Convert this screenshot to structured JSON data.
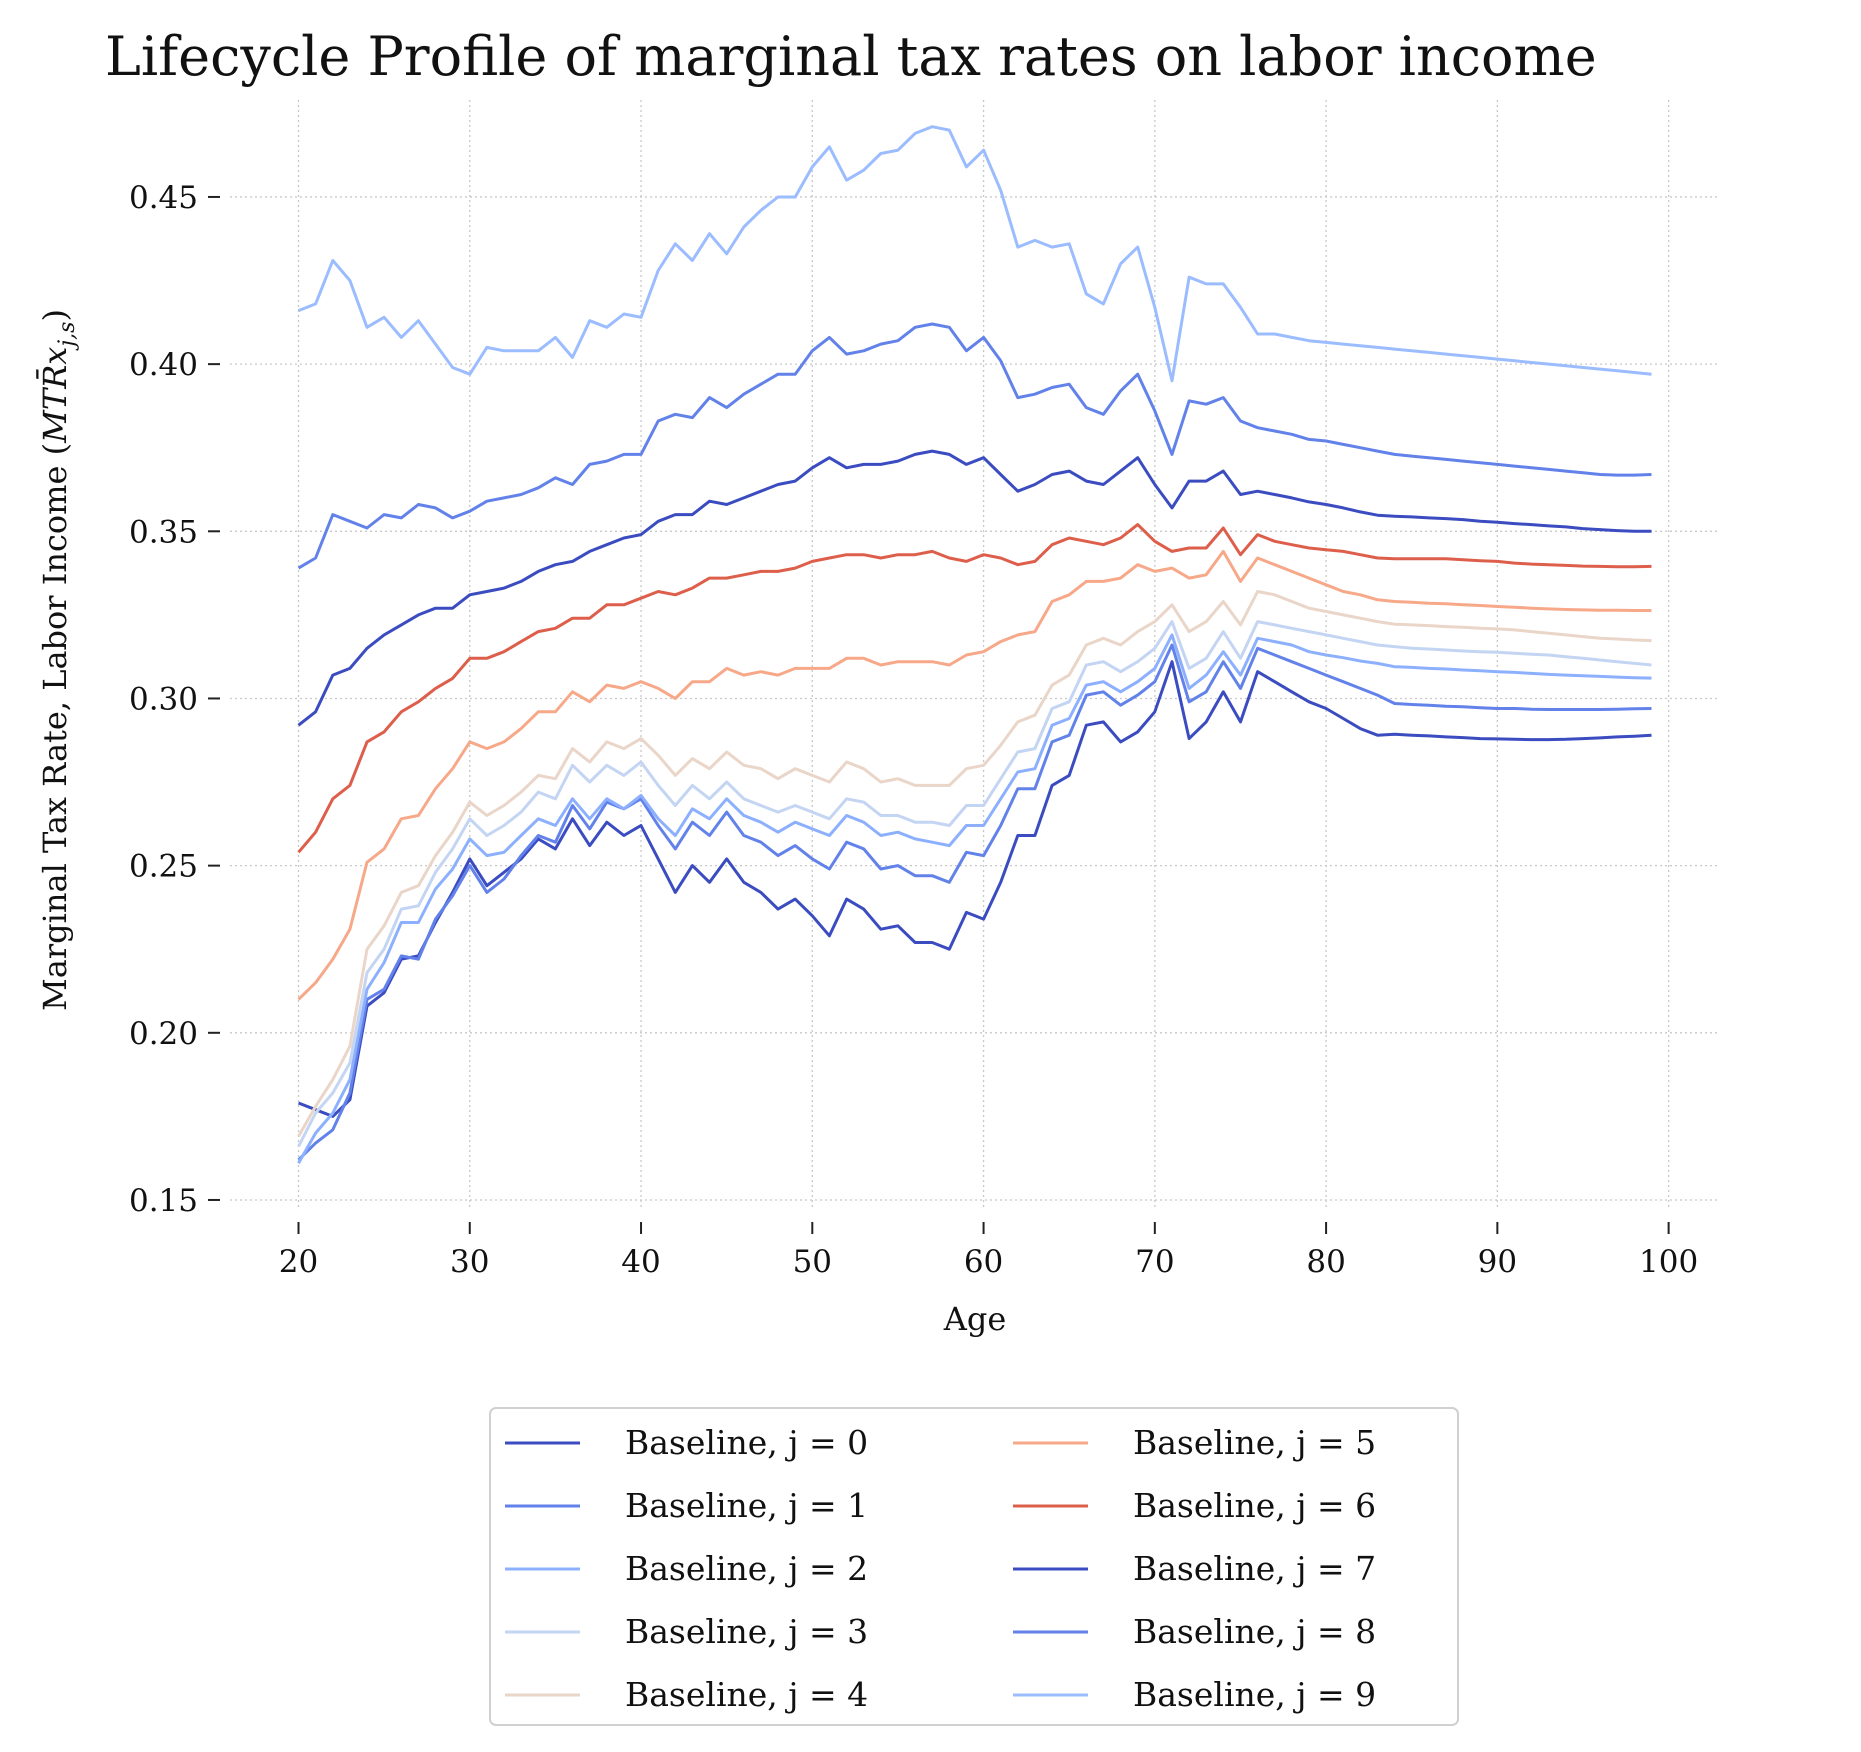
{
  "chart_data": {
    "type": "line",
    "title": "Lifecycle Profile of marginal tax rates on labor income",
    "xlabel": "Age",
    "ylabel_prefix": "Marginal Tax Rate, Labor Income (",
    "ylabel_math": "MTR̄x",
    "ylabel_sub": "j,s",
    "ylabel_suffix": ")",
    "xlim": [
      16,
      103
    ],
    "ylim": [
      0.147,
      0.479
    ],
    "xticks": [
      "20",
      "30",
      "40",
      "50",
      "60",
      "70",
      "80",
      "90",
      "100"
    ],
    "xtick_values": [
      20,
      30,
      40,
      50,
      60,
      70,
      80,
      90,
      100
    ],
    "yticks": [
      "0.15",
      "0.20",
      "0.25",
      "0.30",
      "0.35",
      "0.40",
      "0.45"
    ],
    "ytick_values": [
      0.15,
      0.2,
      0.25,
      0.3,
      0.35,
      0.4,
      0.45
    ],
    "grid": true,
    "legend_position": "below",
    "legend_columns": 2,
    "x": [
      20,
      21,
      22,
      23,
      24,
      25,
      26,
      27,
      28,
      29,
      30,
      31,
      32,
      33,
      34,
      35,
      36,
      37,
      38,
      39,
      40,
      41,
      42,
      43,
      44,
      45,
      46,
      47,
      48,
      49,
      50,
      51,
      52,
      53,
      54,
      55,
      56,
      57,
      58,
      59,
      60,
      61,
      62,
      63,
      64,
      65,
      66,
      67,
      68,
      69,
      70,
      71,
      72,
      73,
      74,
      75,
      76,
      77,
      78,
      79,
      80,
      81,
      82,
      83,
      84,
      85,
      86,
      87,
      88,
      89,
      90,
      91,
      92,
      93,
      94,
      95,
      96,
      97,
      98,
      99
    ],
    "series": [
      {
        "name": "Baseline, j = 0",
        "color": "#3b4cc0",
        "values": [
          0.179,
          0.177,
          0.175,
          0.18,
          0.208,
          0.212,
          0.222,
          0.223,
          0.233,
          0.242,
          0.252,
          0.244,
          0.248,
          0.252,
          0.258,
          0.255,
          0.264,
          0.256,
          0.263,
          0.259,
          0.262,
          0.252,
          0.242,
          0.25,
          0.245,
          0.252,
          0.245,
          0.242,
          0.237,
          0.24,
          0.235,
          0.229,
          0.24,
          0.237,
          0.231,
          0.232,
          0.227,
          0.227,
          0.225,
          0.236,
          0.234,
          0.245,
          0.259,
          0.259,
          0.274,
          0.277,
          0.292,
          0.293,
          0.287,
          0.29,
          0.296,
          0.311,
          0.288,
          0.293,
          0.302,
          0.293,
          0.308,
          0.305,
          0.302,
          0.299,
          0.297,
          0.294,
          0.291,
          0.289,
          0.2893,
          0.289,
          0.2888,
          0.2885,
          0.2883,
          0.288,
          0.2879,
          0.2878,
          0.2877,
          0.2877,
          0.2878,
          0.288,
          0.2882,
          0.2885,
          0.2887,
          0.289
        ]
      },
      {
        "name": "Baseline, j = 1",
        "color": "#6282ea",
        "values": [
          0.162,
          0.167,
          0.171,
          0.182,
          0.21,
          0.213,
          0.223,
          0.222,
          0.234,
          0.241,
          0.25,
          0.242,
          0.246,
          0.253,
          0.259,
          0.257,
          0.268,
          0.261,
          0.269,
          0.267,
          0.27,
          0.262,
          0.255,
          0.263,
          0.259,
          0.266,
          0.259,
          0.257,
          0.253,
          0.256,
          0.252,
          0.249,
          0.257,
          0.255,
          0.249,
          0.25,
          0.247,
          0.247,
          0.245,
          0.254,
          0.253,
          0.262,
          0.273,
          0.273,
          0.287,
          0.289,
          0.301,
          0.302,
          0.298,
          0.301,
          0.305,
          0.316,
          0.299,
          0.302,
          0.311,
          0.303,
          0.315,
          0.313,
          0.311,
          0.309,
          0.307,
          0.305,
          0.303,
          0.301,
          0.2985,
          0.2982,
          0.298,
          0.2977,
          0.2975,
          0.2972,
          0.297,
          0.297,
          0.2968,
          0.2967,
          0.2967,
          0.2967,
          0.2967,
          0.2968,
          0.2969,
          0.297
        ]
      },
      {
        "name": "Baseline, j = 2",
        "color": "#8db0fe",
        "values": [
          0.161,
          0.17,
          0.176,
          0.186,
          0.213,
          0.221,
          0.233,
          0.233,
          0.243,
          0.249,
          0.258,
          0.253,
          0.254,
          0.259,
          0.264,
          0.262,
          0.27,
          0.264,
          0.27,
          0.267,
          0.271,
          0.264,
          0.259,
          0.267,
          0.264,
          0.27,
          0.265,
          0.263,
          0.26,
          0.263,
          0.261,
          0.259,
          0.265,
          0.263,
          0.259,
          0.26,
          0.258,
          0.257,
          0.256,
          0.262,
          0.262,
          0.27,
          0.278,
          0.279,
          0.292,
          0.294,
          0.304,
          0.305,
          0.302,
          0.305,
          0.309,
          0.319,
          0.303,
          0.307,
          0.314,
          0.307,
          0.318,
          0.317,
          0.316,
          0.314,
          0.313,
          0.3122,
          0.3112,
          0.3105,
          0.3095,
          0.3093,
          0.309,
          0.3088,
          0.3085,
          0.3083,
          0.308,
          0.3078,
          0.3075,
          0.3072,
          0.307,
          0.3068,
          0.3066,
          0.3064,
          0.3062,
          0.3061
        ]
      },
      {
        "name": "Baseline, j = 3",
        "color": "#c4d5f3",
        "values": [
          0.166,
          0.176,
          0.182,
          0.191,
          0.218,
          0.225,
          0.237,
          0.238,
          0.248,
          0.255,
          0.264,
          0.259,
          0.262,
          0.266,
          0.272,
          0.27,
          0.28,
          0.275,
          0.28,
          0.277,
          0.281,
          0.274,
          0.268,
          0.274,
          0.27,
          0.275,
          0.27,
          0.268,
          0.266,
          0.268,
          0.266,
          0.264,
          0.27,
          0.269,
          0.265,
          0.265,
          0.263,
          0.263,
          0.262,
          0.268,
          0.268,
          0.276,
          0.284,
          0.285,
          0.297,
          0.299,
          0.31,
          0.311,
          0.308,
          0.311,
          0.315,
          0.323,
          0.309,
          0.312,
          0.32,
          0.312,
          0.323,
          0.322,
          0.321,
          0.32,
          0.319,
          0.318,
          0.317,
          0.316,
          0.3155,
          0.315,
          0.3148,
          0.3145,
          0.3142,
          0.314,
          0.3138,
          0.3135,
          0.3132,
          0.313,
          0.3125,
          0.312,
          0.3115,
          0.311,
          0.3105,
          0.31
        ]
      },
      {
        "name": "Baseline, j = 4",
        "color": "#ead5c9",
        "values": [
          0.169,
          0.178,
          0.186,
          0.196,
          0.225,
          0.232,
          0.242,
          0.244,
          0.253,
          0.26,
          0.269,
          0.265,
          0.268,
          0.272,
          0.277,
          0.276,
          0.285,
          0.281,
          0.287,
          0.285,
          0.288,
          0.283,
          0.277,
          0.282,
          0.279,
          0.284,
          0.28,
          0.279,
          0.276,
          0.279,
          0.277,
          0.275,
          0.281,
          0.279,
          0.275,
          0.276,
          0.274,
          0.274,
          0.274,
          0.279,
          0.28,
          0.286,
          0.293,
          0.295,
          0.304,
          0.307,
          0.316,
          0.318,
          0.316,
          0.32,
          0.323,
          0.328,
          0.32,
          0.323,
          0.329,
          0.322,
          0.332,
          0.331,
          0.329,
          0.327,
          0.326,
          0.325,
          0.324,
          0.323,
          0.3222,
          0.322,
          0.3218,
          0.3215,
          0.3213,
          0.321,
          0.3208,
          0.3205,
          0.32,
          0.3195,
          0.319,
          0.3185,
          0.318,
          0.3178,
          0.3175,
          0.3173
        ]
      },
      {
        "name": "Baseline, j = 5",
        "color": "#f7a889",
        "values": [
          0.21,
          0.215,
          0.222,
          0.231,
          0.251,
          0.255,
          0.264,
          0.265,
          0.273,
          0.279,
          0.287,
          0.285,
          0.287,
          0.291,
          0.296,
          0.296,
          0.302,
          0.299,
          0.304,
          0.303,
          0.305,
          0.303,
          0.3,
          0.305,
          0.305,
          0.309,
          0.307,
          0.308,
          0.307,
          0.309,
          0.309,
          0.309,
          0.312,
          0.312,
          0.31,
          0.311,
          0.311,
          0.311,
          0.31,
          0.313,
          0.314,
          0.317,
          0.319,
          0.32,
          0.329,
          0.331,
          0.335,
          0.335,
          0.336,
          0.34,
          0.338,
          0.339,
          0.336,
          0.337,
          0.344,
          0.335,
          0.342,
          0.34,
          0.338,
          0.336,
          0.334,
          0.332,
          0.331,
          0.3295,
          0.329,
          0.3288,
          0.3285,
          0.3283,
          0.328,
          0.3278,
          0.3275,
          0.3273,
          0.327,
          0.3268,
          0.3266,
          0.3265,
          0.3264,
          0.3264,
          0.3263,
          0.3263
        ]
      },
      {
        "name": "Baseline, j = 6",
        "color": "#dd5f4b",
        "values": [
          0.254,
          0.26,
          0.27,
          0.274,
          0.287,
          0.29,
          0.296,
          0.299,
          0.303,
          0.306,
          0.312,
          0.312,
          0.314,
          0.317,
          0.32,
          0.321,
          0.324,
          0.324,
          0.328,
          0.328,
          0.33,
          0.332,
          0.331,
          0.333,
          0.336,
          0.336,
          0.337,
          0.338,
          0.338,
          0.339,
          0.341,
          0.342,
          0.343,
          0.343,
          0.342,
          0.343,
          0.343,
          0.344,
          0.342,
          0.341,
          0.343,
          0.342,
          0.34,
          0.341,
          0.346,
          0.348,
          0.347,
          0.346,
          0.348,
          0.352,
          0.347,
          0.344,
          0.345,
          0.345,
          0.351,
          0.343,
          0.349,
          0.347,
          0.346,
          0.345,
          0.3445,
          0.344,
          0.343,
          0.342,
          0.3418,
          0.3418,
          0.3418,
          0.3418,
          0.3415,
          0.3412,
          0.341,
          0.3405,
          0.3402,
          0.34,
          0.3398,
          0.3396,
          0.3395,
          0.3394,
          0.3394,
          0.3395
        ]
      },
      {
        "name": "Baseline, j = 7",
        "color": "#3b4cc0",
        "values": [
          0.292,
          0.296,
          0.307,
          0.309,
          0.315,
          0.319,
          0.322,
          0.325,
          0.327,
          0.327,
          0.331,
          0.332,
          0.333,
          0.335,
          0.338,
          0.34,
          0.341,
          0.344,
          0.346,
          0.348,
          0.349,
          0.353,
          0.355,
          0.355,
          0.359,
          0.358,
          0.36,
          0.362,
          0.364,
          0.365,
          0.369,
          0.372,
          0.369,
          0.37,
          0.37,
          0.371,
          0.373,
          0.374,
          0.373,
          0.37,
          0.372,
          0.367,
          0.362,
          0.364,
          0.367,
          0.368,
          0.365,
          0.364,
          0.368,
          0.372,
          0.364,
          0.357,
          0.365,
          0.365,
          0.368,
          0.361,
          0.362,
          0.361,
          0.36,
          0.3588,
          0.358,
          0.357,
          0.3558,
          0.3548,
          0.3545,
          0.3543,
          0.354,
          0.3538,
          0.3535,
          0.353,
          0.3527,
          0.3523,
          0.352,
          0.3516,
          0.3513,
          0.3508,
          0.3505,
          0.3502,
          0.35,
          0.35
        ]
      },
      {
        "name": "Baseline, j = 8",
        "color": "#6282ea",
        "values": [
          0.339,
          0.342,
          0.355,
          0.353,
          0.351,
          0.355,
          0.354,
          0.358,
          0.357,
          0.354,
          0.356,
          0.359,
          0.36,
          0.361,
          0.363,
          0.366,
          0.364,
          0.37,
          0.371,
          0.373,
          0.373,
          0.383,
          0.385,
          0.384,
          0.39,
          0.387,
          0.391,
          0.394,
          0.397,
          0.397,
          0.404,
          0.408,
          0.403,
          0.404,
          0.406,
          0.407,
          0.411,
          0.412,
          0.411,
          0.404,
          0.408,
          0.401,
          0.39,
          0.391,
          0.393,
          0.394,
          0.387,
          0.385,
          0.392,
          0.397,
          0.386,
          0.373,
          0.389,
          0.388,
          0.39,
          0.383,
          0.381,
          0.38,
          0.379,
          0.3775,
          0.377,
          0.376,
          0.375,
          0.374,
          0.373,
          0.3725,
          0.372,
          0.3715,
          0.371,
          0.3705,
          0.37,
          0.3695,
          0.369,
          0.3685,
          0.368,
          0.3675,
          0.367,
          0.3668,
          0.3668,
          0.367
        ]
      },
      {
        "name": "Baseline, j = 9",
        "color": "#9bbcff",
        "values": [
          0.416,
          0.418,
          0.431,
          0.425,
          0.411,
          0.414,
          0.408,
          0.413,
          0.406,
          0.399,
          0.397,
          0.405,
          0.404,
          0.404,
          0.404,
          0.408,
          0.402,
          0.413,
          0.411,
          0.415,
          0.414,
          0.428,
          0.436,
          0.431,
          0.439,
          0.433,
          0.441,
          0.446,
          0.45,
          0.45,
          0.459,
          0.465,
          0.455,
          0.458,
          0.463,
          0.464,
          0.469,
          0.471,
          0.47,
          0.459,
          0.464,
          0.452,
          0.435,
          0.437,
          0.435,
          0.436,
          0.421,
          0.418,
          0.43,
          0.435,
          0.417,
          0.395,
          0.426,
          0.424,
          0.424,
          0.417,
          0.409,
          0.409,
          0.408,
          0.407,
          0.4065,
          0.406,
          0.4055,
          0.405,
          0.4045,
          0.404,
          0.4035,
          0.403,
          0.4025,
          0.402,
          0.4015,
          0.401,
          0.4005,
          0.4,
          0.3995,
          0.399,
          0.3985,
          0.398,
          0.3975,
          0.397
        ]
      }
    ]
  }
}
